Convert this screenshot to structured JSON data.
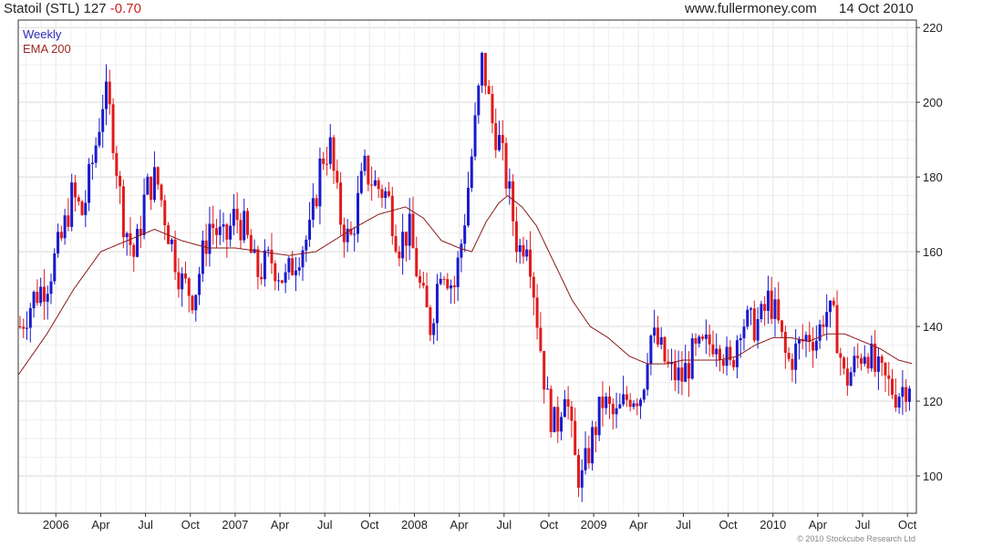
{
  "header": {
    "symbol": "Statoil (STL) 127",
    "change": "-0.70",
    "site": "www.fullermoney.com",
    "date": "14 Oct 2010"
  },
  "copyright": "© 2010 Stockcube Research Ltd",
  "colors": {
    "up": "#1a1acc",
    "down": "#e01b1b",
    "ema": "#8b1a1a",
    "grid": "#d9d9d9"
  },
  "chart_data": {
    "type": "candlestick",
    "ylim": [
      90,
      222
    ],
    "y_ticks": [
      100,
      120,
      140,
      160,
      180,
      200,
      220
    ],
    "x_ticks": [
      {
        "label": "2006",
        "t": 2006.0
      },
      {
        "label": "Apr",
        "t": 2006.25
      },
      {
        "label": "Jul",
        "t": 2006.5
      },
      {
        "label": "Oct",
        "t": 2006.75
      },
      {
        "label": "2007",
        "t": 2007.0
      },
      {
        "label": "Apr",
        "t": 2007.25
      },
      {
        "label": "Jul",
        "t": 2007.5
      },
      {
        "label": "Oct",
        "t": 2007.75
      },
      {
        "label": "2008",
        "t": 2008.0
      },
      {
        "label": "Apr",
        "t": 2008.25
      },
      {
        "label": "Jul",
        "t": 2008.5
      },
      {
        "label": "Oct",
        "t": 2008.75
      },
      {
        "label": "2009",
        "t": 2009.0
      },
      {
        "label": "Apr",
        "t": 2009.25
      },
      {
        "label": "Jul",
        "t": 2009.5
      },
      {
        "label": "Oct",
        "t": 2009.75
      },
      {
        "label": "2010",
        "t": 2010.0
      },
      {
        "label": "Apr",
        "t": 2010.25
      },
      {
        "label": "Jul",
        "t": 2010.5
      },
      {
        "label": "Oct",
        "t": 2010.75
      }
    ],
    "xlim": [
      2005.79,
      2010.8
    ],
    "grid": true,
    "series": [
      {
        "name": "Weekly",
        "close_anchors": [
          [
            2005.8,
            140
          ],
          [
            2005.88,
            148
          ],
          [
            2005.95,
            152
          ],
          [
            2006.03,
            163
          ],
          [
            2006.09,
            175
          ],
          [
            2006.15,
            170
          ],
          [
            2006.22,
            188
          ],
          [
            2006.27,
            203
          ],
          [
            2006.31,
            195
          ],
          [
            2006.37,
            170
          ],
          [
            2006.44,
            158
          ],
          [
            2006.5,
            176
          ],
          [
            2006.56,
            180
          ],
          [
            2006.63,
            165
          ],
          [
            2006.7,
            152
          ],
          [
            2006.77,
            148
          ],
          [
            2006.86,
            168
          ],
          [
            2006.94,
            162
          ],
          [
            2007.0,
            170
          ],
          [
            2007.05,
            166
          ],
          [
            2007.12,
            154
          ],
          [
            2007.2,
            158
          ],
          [
            2007.28,
            152
          ],
          [
            2007.35,
            160
          ],
          [
            2007.42,
            165
          ],
          [
            2007.48,
            185
          ],
          [
            2007.53,
            188
          ],
          [
            2007.58,
            170
          ],
          [
            2007.64,
            162
          ],
          [
            2007.72,
            182
          ],
          [
            2007.78,
            178
          ],
          [
            2007.85,
            175
          ],
          [
            2007.91,
            162
          ],
          [
            2007.97,
            166
          ],
          [
            2008.04,
            148
          ],
          [
            2008.09,
            140
          ],
          [
            2008.15,
            158
          ],
          [
            2008.22,
            150
          ],
          [
            2008.27,
            165
          ],
          [
            2008.33,
            190
          ],
          [
            2008.38,
            212
          ],
          [
            2008.43,
            195
          ],
          [
            2008.47,
            190
          ],
          [
            2008.53,
            175
          ],
          [
            2008.58,
            160
          ],
          [
            2008.63,
            165
          ],
          [
            2008.69,
            140
          ],
          [
            2008.74,
            120
          ],
          [
            2008.79,
            112
          ],
          [
            2008.84,
            125
          ],
          [
            2008.89,
            105
          ],
          [
            2008.93,
            98
          ],
          [
            2008.98,
            108
          ],
          [
            2009.05,
            120
          ],
          [
            2009.12,
            115
          ],
          [
            2009.2,
            122
          ],
          [
            2009.27,
            122
          ],
          [
            2009.31,
            138
          ],
          [
            2009.36,
            135
          ],
          [
            2009.42,
            128
          ],
          [
            2009.49,
            126
          ],
          [
            2009.55,
            132
          ],
          [
            2009.62,
            134
          ],
          [
            2009.69,
            138
          ],
          [
            2009.76,
            128
          ],
          [
            2009.82,
            142
          ],
          [
            2009.88,
            140
          ],
          [
            2009.94,
            142
          ],
          [
            2009.98,
            148
          ],
          [
            2010.03,
            140
          ],
          [
            2010.08,
            130
          ],
          [
            2010.15,
            135
          ],
          [
            2010.2,
            138
          ],
          [
            2010.25,
            137
          ],
          [
            2010.29,
            145
          ],
          [
            2010.35,
            140
          ],
          [
            2010.4,
            125
          ],
          [
            2010.46,
            130
          ],
          [
            2010.52,
            135
          ],
          [
            2010.57,
            128
          ],
          [
            2010.63,
            125
          ],
          [
            2010.69,
            122
          ],
          [
            2010.73,
            124
          ],
          [
            2010.78,
            127
          ]
        ]
      },
      {
        "name": "EMA 200",
        "points": [
          [
            2005.79,
            127
          ],
          [
            2005.95,
            138
          ],
          [
            2006.1,
            150
          ],
          [
            2006.25,
            160
          ],
          [
            2006.4,
            163
          ],
          [
            2006.55,
            166
          ],
          [
            2006.7,
            163
          ],
          [
            2006.85,
            161
          ],
          [
            2007.0,
            161
          ],
          [
            2007.15,
            160
          ],
          [
            2007.3,
            159
          ],
          [
            2007.45,
            160
          ],
          [
            2007.55,
            163
          ],
          [
            2007.65,
            166
          ],
          [
            2007.8,
            170
          ],
          [
            2007.95,
            172
          ],
          [
            2008.05,
            169
          ],
          [
            2008.15,
            163
          ],
          [
            2008.25,
            161
          ],
          [
            2008.32,
            160
          ],
          [
            2008.4,
            168
          ],
          [
            2008.47,
            173
          ],
          [
            2008.52,
            175
          ],
          [
            2008.6,
            172
          ],
          [
            2008.68,
            167
          ],
          [
            2008.78,
            157
          ],
          [
            2008.88,
            147
          ],
          [
            2008.98,
            140
          ],
          [
            2009.08,
            137
          ],
          [
            2009.2,
            132
          ],
          [
            2009.3,
            130
          ],
          [
            2009.4,
            130
          ],
          [
            2009.5,
            131
          ],
          [
            2009.6,
            131
          ],
          [
            2009.7,
            131
          ],
          [
            2009.8,
            132
          ],
          [
            2009.9,
            135
          ],
          [
            2010.0,
            137
          ],
          [
            2010.1,
            137
          ],
          [
            2010.2,
            136
          ],
          [
            2010.3,
            138
          ],
          [
            2010.4,
            138
          ],
          [
            2010.5,
            136
          ],
          [
            2010.6,
            134
          ],
          [
            2010.7,
            131
          ],
          [
            2010.78,
            130
          ]
        ]
      }
    ],
    "last": 127,
    "change": -0.7
  }
}
